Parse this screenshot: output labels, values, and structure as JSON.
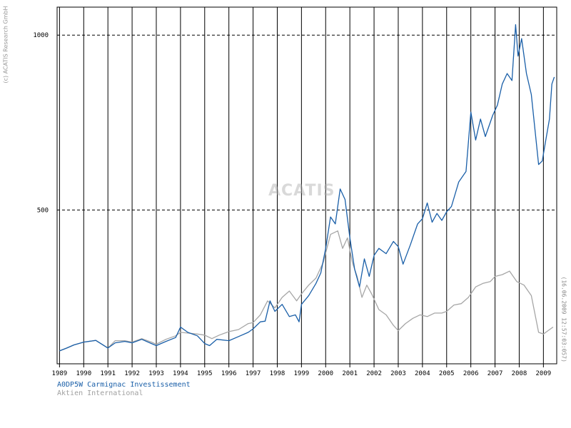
{
  "copyright": "(c) ACATIS Research GmbH",
  "timestamp": "(16.06.2009 12:57:03:057)",
  "watermark": "ACATIS",
  "colors": {
    "fund": "#1a5fa8",
    "benchmark": "#a6a6a6",
    "grid": "#000000"
  },
  "chart_data": {
    "type": "line",
    "title": "",
    "xlabel": "",
    "ylabel": "",
    "xlim": [
      1988.9,
      2009.55
    ],
    "ylim": [
      60,
      1080
    ],
    "y_ticks": [
      500,
      1000
    ],
    "y_tick_labels": [
      "500",
      "1000"
    ],
    "x_ticks": [
      1989,
      1990,
      1991,
      1992,
      1993,
      1994,
      1995,
      1996,
      1997,
      1998,
      1999,
      2000,
      2001,
      2002,
      2003,
      2004,
      2005,
      2006,
      2007,
      2008,
      2009
    ],
    "x_tick_labels": [
      "1989",
      "1990",
      "1991",
      "1992",
      "1993",
      "1994",
      "1995",
      "1996",
      "1997",
      "1998",
      "1999",
      "2000",
      "2001",
      "2002",
      "2003",
      "2004",
      "2005",
      "2006",
      "2007",
      "2008",
      "2009"
    ],
    "horizontal_grid": "dashed at 500 and 1000",
    "vertical_grid": true,
    "legend_placement": "bottom-left",
    "series": [
      {
        "name": "A0DP5W Carmignac Investissement",
        "points": [
          [
            1989.0,
            97
          ],
          [
            1989.3,
            105
          ],
          [
            1989.6,
            114
          ],
          [
            1990.0,
            122
          ],
          [
            1990.5,
            127
          ],
          [
            1991.0,
            105
          ],
          [
            1991.3,
            120
          ],
          [
            1991.7,
            124
          ],
          [
            1992.0,
            120
          ],
          [
            1992.4,
            130
          ],
          [
            1992.8,
            118
          ],
          [
            1993.0,
            112
          ],
          [
            1993.4,
            124
          ],
          [
            1993.8,
            135
          ],
          [
            1994.0,
            165
          ],
          [
            1994.3,
            150
          ],
          [
            1994.7,
            140
          ],
          [
            1995.0,
            118
          ],
          [
            1995.2,
            112
          ],
          [
            1995.5,
            130
          ],
          [
            1996.0,
            126
          ],
          [
            1996.4,
            138
          ],
          [
            1996.8,
            150
          ],
          [
            1997.0,
            160
          ],
          [
            1997.3,
            180
          ],
          [
            1997.5,
            182
          ],
          [
            1997.7,
            240
          ],
          [
            1997.9,
            210
          ],
          [
            1998.2,
            230
          ],
          [
            1998.5,
            195
          ],
          [
            1998.75,
            200
          ],
          [
            1998.9,
            180
          ],
          [
            1999.0,
            230
          ],
          [
            1999.3,
            255
          ],
          [
            1999.6,
            290
          ],
          [
            1999.8,
            320
          ],
          [
            2000.0,
            390
          ],
          [
            2000.2,
            480
          ],
          [
            2000.4,
            460
          ],
          [
            2000.6,
            560
          ],
          [
            2000.8,
            530
          ],
          [
            2001.0,
            420
          ],
          [
            2001.2,
            330
          ],
          [
            2001.4,
            280
          ],
          [
            2001.6,
            360
          ],
          [
            2001.8,
            310
          ],
          [
            2002.0,
            370
          ],
          [
            2002.2,
            390
          ],
          [
            2002.5,
            375
          ],
          [
            2002.8,
            410
          ],
          [
            2003.0,
            395
          ],
          [
            2003.2,
            345
          ],
          [
            2003.5,
            400
          ],
          [
            2003.8,
            460
          ],
          [
            2004.0,
            475
          ],
          [
            2004.2,
            520
          ],
          [
            2004.4,
            465
          ],
          [
            2004.6,
            490
          ],
          [
            2004.8,
            470
          ],
          [
            2005.0,
            495
          ],
          [
            2005.2,
            510
          ],
          [
            2005.5,
            580
          ],
          [
            2005.8,
            610
          ],
          [
            2006.0,
            780
          ],
          [
            2006.2,
            700
          ],
          [
            2006.4,
            760
          ],
          [
            2006.6,
            710
          ],
          [
            2006.9,
            770
          ],
          [
            2007.1,
            800
          ],
          [
            2007.3,
            860
          ],
          [
            2007.5,
            890
          ],
          [
            2007.7,
            870
          ],
          [
            2007.85,
            1030
          ],
          [
            2007.95,
            940
          ],
          [
            2008.1,
            990
          ],
          [
            2008.3,
            890
          ],
          [
            2008.5,
            830
          ],
          [
            2008.65,
            730
          ],
          [
            2008.8,
            630
          ],
          [
            2008.95,
            640
          ],
          [
            2009.1,
            700
          ],
          [
            2009.25,
            760
          ],
          [
            2009.35,
            860
          ],
          [
            2009.45,
            880
          ]
        ]
      },
      {
        "name": "Aktien International",
        "points": [
          [
            1989.0,
            97
          ],
          [
            1989.3,
            105
          ],
          [
            1989.6,
            114
          ],
          [
            1990.0,
            122
          ],
          [
            1990.5,
            127
          ],
          [
            1991.0,
            105
          ],
          [
            1991.3,
            126
          ],
          [
            1991.7,
            126
          ],
          [
            1992.0,
            122
          ],
          [
            1992.4,
            132
          ],
          [
            1992.8,
            122
          ],
          [
            1993.0,
            116
          ],
          [
            1993.4,
            130
          ],
          [
            1993.8,
            140
          ],
          [
            1994.0,
            150
          ],
          [
            1994.3,
            148
          ],
          [
            1994.7,
            145
          ],
          [
            1995.0,
            142
          ],
          [
            1995.3,
            132
          ],
          [
            1995.6,
            142
          ],
          [
            1996.0,
            152
          ],
          [
            1996.4,
            158
          ],
          [
            1996.8,
            175
          ],
          [
            1997.0,
            178
          ],
          [
            1997.3,
            200
          ],
          [
            1997.6,
            240
          ],
          [
            1997.9,
            220
          ],
          [
            1998.2,
            250
          ],
          [
            1998.5,
            268
          ],
          [
            1998.8,
            240
          ],
          [
            1999.0,
            260
          ],
          [
            1999.3,
            285
          ],
          [
            1999.6,
            305
          ],
          [
            1999.9,
            350
          ],
          [
            2000.2,
            430
          ],
          [
            2000.5,
            440
          ],
          [
            2000.7,
            390
          ],
          [
            2000.9,
            420
          ],
          [
            2001.1,
            350
          ],
          [
            2001.3,
            310
          ],
          [
            2001.5,
            250
          ],
          [
            2001.7,
            285
          ],
          [
            2001.9,
            260
          ],
          [
            2002.2,
            215
          ],
          [
            2002.5,
            200
          ],
          [
            2002.8,
            170
          ],
          [
            2003.0,
            155
          ],
          [
            2003.3,
            175
          ],
          [
            2003.6,
            190
          ],
          [
            2003.9,
            200
          ],
          [
            2004.2,
            195
          ],
          [
            2004.5,
            205
          ],
          [
            2004.8,
            205
          ],
          [
            2005.0,
            210
          ],
          [
            2005.3,
            228
          ],
          [
            2005.6,
            232
          ],
          [
            2005.9,
            250
          ],
          [
            2006.2,
            280
          ],
          [
            2006.5,
            290
          ],
          [
            2006.8,
            295
          ],
          [
            2007.0,
            310
          ],
          [
            2007.3,
            315
          ],
          [
            2007.6,
            325
          ],
          [
            2007.9,
            295
          ],
          [
            2008.2,
            285
          ],
          [
            2008.5,
            255
          ],
          [
            2008.8,
            150
          ],
          [
            2009.0,
            145
          ],
          [
            2009.2,
            155
          ],
          [
            2009.4,
            165
          ]
        ]
      }
    ]
  }
}
